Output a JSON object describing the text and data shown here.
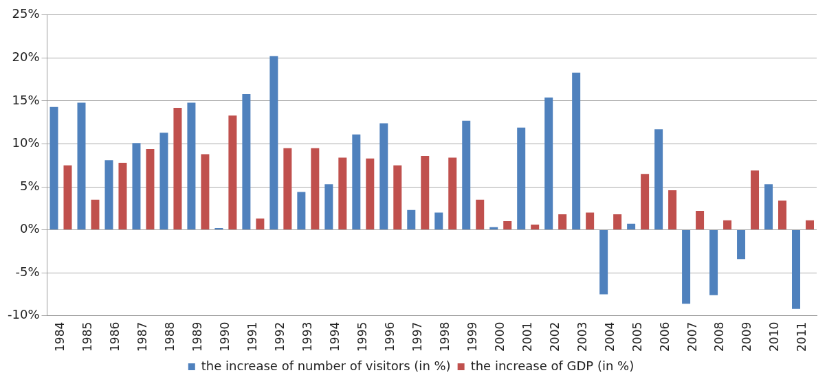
{
  "chart_data": {
    "type": "bar",
    "categories": [
      "1984",
      "1985",
      "1986",
      "1987",
      "1988",
      "1989",
      "1990",
      "1991",
      "1992",
      "1993",
      "1994",
      "1995",
      "1996",
      "1997",
      "1998",
      "1999",
      "2000",
      "2001",
      "2002",
      "2003",
      "2004",
      "2005",
      "2006",
      "2007",
      "2008",
      "2009",
      "2010",
      "2011"
    ],
    "series": [
      {
        "name": "the increase of number of visitors (in %)",
        "color": "#4f81bd",
        "values": [
          14.3,
          14.8,
          8.1,
          10.1,
          11.3,
          14.8,
          0.2,
          15.8,
          20.2,
          4.4,
          5.3,
          11.1,
          12.4,
          2.3,
          2.0,
          12.7,
          0.3,
          11.9,
          15.4,
          18.3,
          -7.5,
          0.7,
          11.7,
          -8.6,
          -7.6,
          -3.4,
          5.3,
          -9.2
        ]
      },
      {
        "name": "the increase of GDP (in %)",
        "color": "#c0504d",
        "values": [
          7.5,
          3.5,
          7.8,
          9.4,
          14.2,
          8.8,
          13.3,
          1.3,
          9.5,
          9.5,
          8.4,
          8.3,
          7.5,
          8.6,
          8.4,
          3.5,
          1.0,
          0.6,
          1.8,
          2.0,
          1.8,
          6.5,
          4.6,
          2.2,
          1.1,
          6.9,
          3.4,
          1.1
        ]
      }
    ],
    "ylim": [
      -10,
      25
    ],
    "yticks": [
      {
        "value": -10,
        "label": "-10%"
      },
      {
        "value": -5,
        "label": "-5%"
      },
      {
        "value": 0,
        "label": "0%"
      },
      {
        "value": 5,
        "label": "5%"
      },
      {
        "value": 10,
        "label": "10%"
      },
      {
        "value": 15,
        "label": "15%"
      },
      {
        "value": 20,
        "label": "20%"
      },
      {
        "value": 25,
        "label": "25%"
      }
    ],
    "grid": "y",
    "legend": "bottom"
  }
}
